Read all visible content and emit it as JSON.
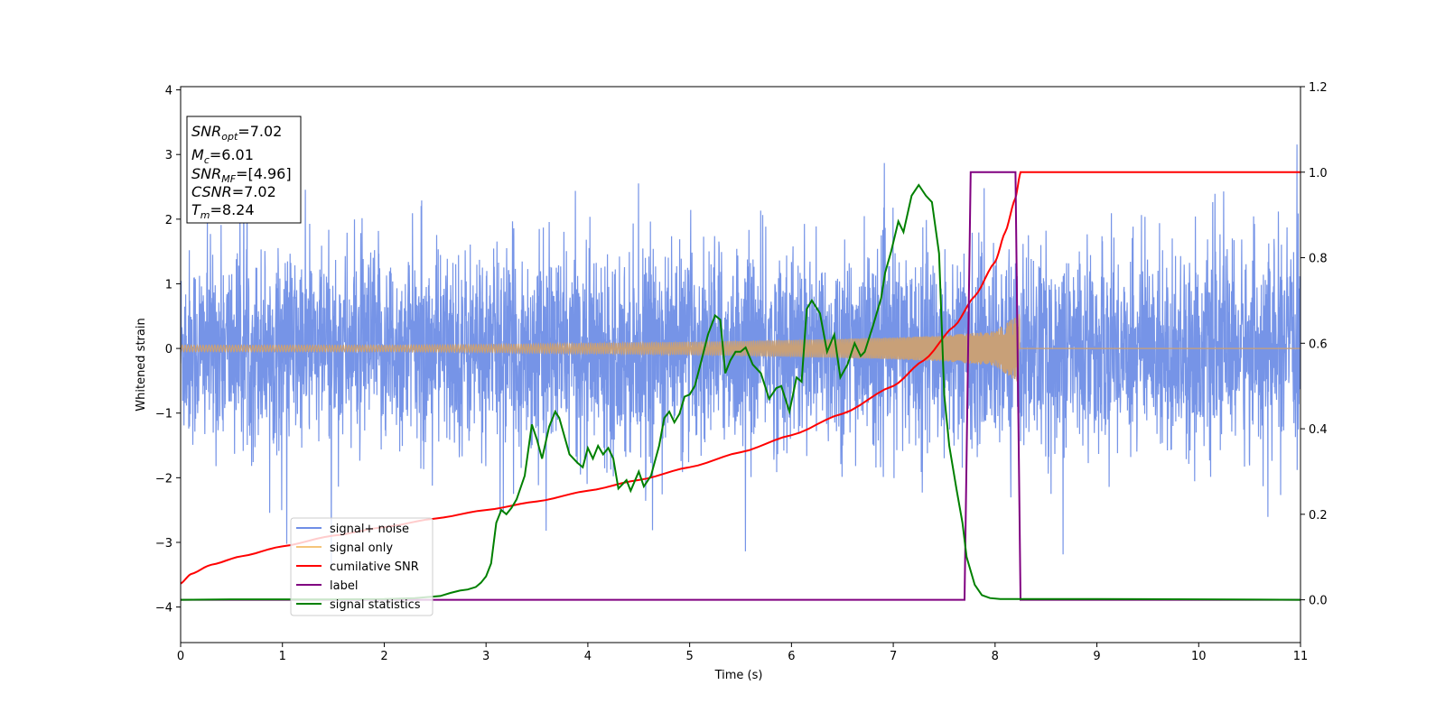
{
  "chart_data": {
    "type": "line",
    "xlabel": "Time (s)",
    "ylabel": "Whitened strain",
    "xlim": [
      0,
      11
    ],
    "ylim_left": [
      -4.55,
      4.05
    ],
    "ylim_right": [
      -0.1,
      1.2
    ],
    "x_ticks": [
      "0",
      "1",
      "2",
      "3",
      "4",
      "5",
      "6",
      "7",
      "8",
      "9",
      "10",
      "11"
    ],
    "y_ticks_left": [
      "−4",
      "−3",
      "−2",
      "−1",
      "0",
      "1",
      "2",
      "3",
      "4"
    ],
    "y_ticks_right": [
      "0.0",
      "0.2",
      "0.4",
      "0.6",
      "0.8",
      "1.0",
      "1.2"
    ],
    "info_box": [
      {
        "sym": "SNR",
        "sub": "opt",
        "rest": "=7.02"
      },
      {
        "sym": "M",
        "sub": "c",
        "rest": "=6.01"
      },
      {
        "sym": "SNR",
        "sub": "MF",
        "rest": "=[4.96]"
      },
      {
        "sym": "CSNR",
        "sub": "",
        "rest": "=7.02"
      },
      {
        "sym": "T",
        "sub": "m",
        "rest": "=8.24"
      }
    ],
    "legend": [
      {
        "label": "signal+ noise",
        "color": "#6f8ee6"
      },
      {
        "label": "signal only",
        "color": "#f5c57a"
      },
      {
        "label": "cumilative SNR",
        "color": "#ff0000"
      },
      {
        "label": "label",
        "color": "#800080"
      },
      {
        "label": "signal statistics",
        "color": "#008000"
      }
    ],
    "series": [
      {
        "name": "signal+ noise",
        "axis": "left",
        "color": "#6f8ee6",
        "note_type": "noise",
        "range": [
          -2.5,
          2.5
        ]
      },
      {
        "name": "signal only",
        "axis": "left",
        "color": "#c8a078",
        "envelope": {
          "x": [
            0,
            1,
            2,
            3,
            4,
            5,
            6,
            7,
            7.5,
            8.0,
            8.24
          ],
          "amp": [
            0.05,
            0.05,
            0.05,
            0.06,
            0.08,
            0.1,
            0.13,
            0.17,
            0.2,
            0.27,
            0.55
          ]
        }
      },
      {
        "name": "cumilative SNR",
        "axis": "right",
        "color": "#ff0000",
        "x": [
          0,
          0.1,
          0.3,
          0.6,
          1,
          1.5,
          2,
          2.5,
          3,
          3.5,
          4,
          4.5,
          5,
          5.5,
          6,
          6.5,
          7,
          7.3,
          7.6,
          7.8,
          8.0,
          8.1,
          8.2,
          8.25,
          11
        ],
        "y": [
          0.038,
          0.06,
          0.082,
          0.102,
          0.125,
          0.15,
          0.17,
          0.19,
          0.21,
          0.23,
          0.255,
          0.28,
          0.31,
          0.345,
          0.385,
          0.435,
          0.5,
          0.56,
          0.64,
          0.71,
          0.79,
          0.86,
          0.94,
          1.0,
          1.0
        ]
      },
      {
        "name": "label",
        "axis": "right",
        "color": "#800080",
        "x": [
          0,
          7.7,
          7.76,
          8.2,
          8.25,
          11
        ],
        "y": [
          0,
          0,
          1,
          1,
          0,
          0
        ]
      },
      {
        "name": "signal statistics",
        "axis": "right",
        "color": "#008000",
        "x": [
          0,
          0.5,
          1.0,
          1.5,
          2.0,
          2.3,
          2.55,
          2.65,
          2.75,
          2.82,
          2.9,
          2.95,
          3.0,
          3.05,
          3.1,
          3.15,
          3.2,
          3.25,
          3.3,
          3.38,
          3.45,
          3.5,
          3.55,
          3.62,
          3.68,
          3.72,
          3.82,
          3.9,
          3.95,
          4.0,
          4.05,
          4.1,
          4.15,
          4.2,
          4.25,
          4.3,
          4.38,
          4.42,
          4.5,
          4.55,
          4.62,
          4.7,
          4.75,
          4.8,
          4.85,
          4.9,
          4.95,
          5.0,
          5.05,
          5.1,
          5.18,
          5.25,
          5.3,
          5.35,
          5.4,
          5.45,
          5.5,
          5.55,
          5.62,
          5.7,
          5.78,
          5.85,
          5.9,
          5.98,
          6.05,
          6.1,
          6.15,
          6.2,
          6.28,
          6.35,
          6.42,
          6.48,
          6.55,
          6.62,
          6.68,
          6.72,
          6.8,
          6.88,
          6.92,
          6.98,
          7.05,
          7.1,
          7.18,
          7.25,
          7.32,
          7.38,
          7.45,
          7.5,
          7.55,
          7.62,
          7.68,
          7.72,
          7.8,
          7.87,
          7.95,
          8.05,
          8.2,
          9.0,
          11.0
        ],
        "y": [
          0,
          0.001,
          0.001,
          0.001,
          0.002,
          0.004,
          0.009,
          0.016,
          0.022,
          0.024,
          0.03,
          0.04,
          0.055,
          0.085,
          0.18,
          0.21,
          0.2,
          0.215,
          0.235,
          0.29,
          0.41,
          0.375,
          0.33,
          0.405,
          0.44,
          0.425,
          0.34,
          0.32,
          0.31,
          0.355,
          0.33,
          0.36,
          0.34,
          0.355,
          0.33,
          0.26,
          0.28,
          0.255,
          0.3,
          0.265,
          0.29,
          0.36,
          0.425,
          0.44,
          0.415,
          0.435,
          0.475,
          0.48,
          0.5,
          0.545,
          0.62,
          0.665,
          0.655,
          0.53,
          0.56,
          0.58,
          0.58,
          0.59,
          0.55,
          0.53,
          0.47,
          0.495,
          0.5,
          0.44,
          0.52,
          0.51,
          0.68,
          0.7,
          0.67,
          0.58,
          0.62,
          0.52,
          0.55,
          0.6,
          0.57,
          0.58,
          0.64,
          0.705,
          0.765,
          0.815,
          0.885,
          0.86,
          0.945,
          0.97,
          0.945,
          0.93,
          0.81,
          0.48,
          0.36,
          0.26,
          0.18,
          0.1,
          0.035,
          0.011,
          0.004,
          0.002,
          0.002,
          0.002,
          0.0
        ]
      }
    ]
  }
}
